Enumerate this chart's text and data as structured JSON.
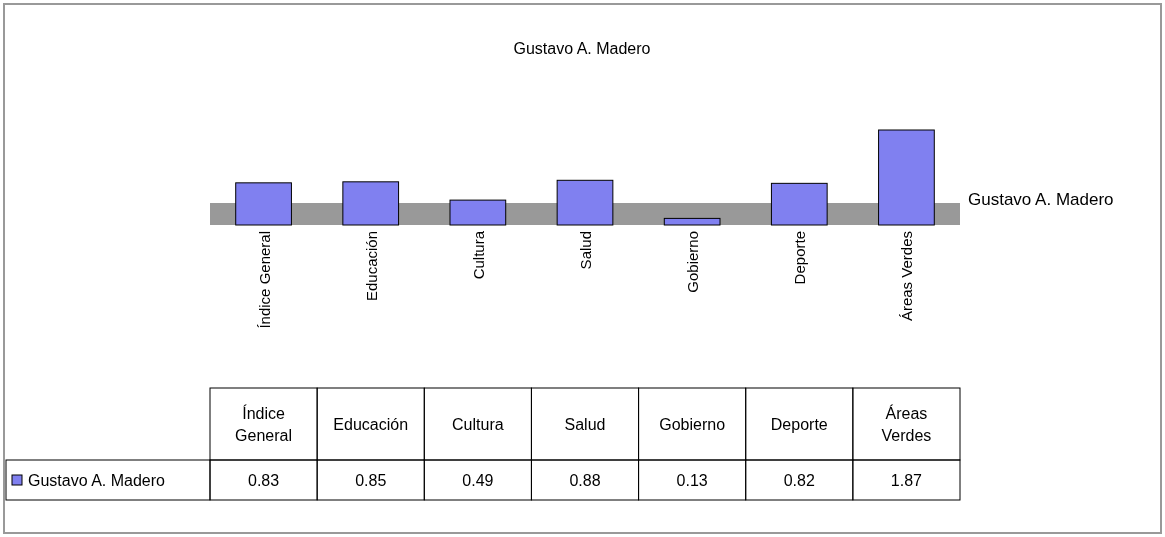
{
  "chart_data": {
    "type": "bar",
    "title": "Gustavo A. Madero",
    "categories": [
      "Índice General",
      "Educación",
      "Cultura",
      "Salud",
      "Gobierno",
      "Deporte",
      "Áreas Verdes"
    ],
    "series": [
      {
        "name": "Gustavo A. Madero",
        "color": "#8080f0",
        "values": [
          0.83,
          0.85,
          0.49,
          0.88,
          0.13,
          0.82,
          1.87
        ]
      }
    ],
    "data_labels": true
  }
}
